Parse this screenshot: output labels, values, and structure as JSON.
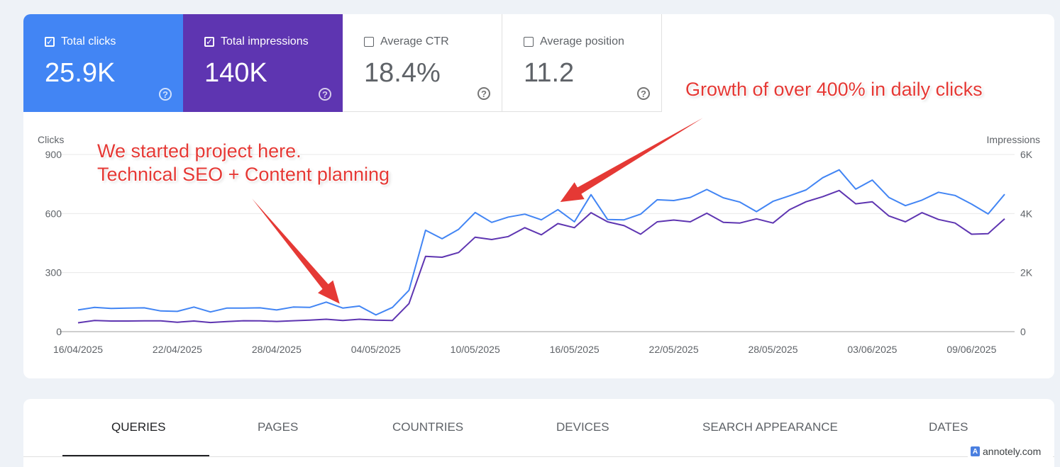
{
  "metrics": [
    {
      "label": "Total clicks",
      "value": "25.9K",
      "checked": true,
      "color": "#4285f4"
    },
    {
      "label": "Total impressions",
      "value": "140K",
      "checked": true,
      "color": "#5e35b1"
    },
    {
      "label": "Average CTR",
      "value": "18.4%",
      "checked": false
    },
    {
      "label": "Average position",
      "value": "11.2",
      "checked": false
    }
  ],
  "annotations": {
    "start_line1": "We started project here.",
    "start_line2": "Technical SEO + Content planning",
    "growth": "Growth of over 400% in daily clicks",
    "arrow_color": "#e53935"
  },
  "chart_data": {
    "type": "line",
    "left_axis_label": "Clicks",
    "right_axis_label": "Impressions",
    "left_ticks": [
      "900",
      "600",
      "300",
      "0"
    ],
    "right_ticks": [
      "6K",
      "4K",
      "2K",
      "0"
    ],
    "left_ylim": [
      0,
      900
    ],
    "right_ylim": [
      0,
      6000
    ],
    "x_tick_labels": [
      "16/04/2025",
      "22/04/2025",
      "28/04/2025",
      "04/05/2025",
      "10/05/2025",
      "16/05/2025",
      "22/05/2025",
      "28/05/2025",
      "03/06/2025",
      "09/06/2025"
    ],
    "x_start": "2025-04-16",
    "x_end": "2025-06-11",
    "grid": true,
    "series": [
      {
        "name": "Total clicks",
        "axis": "left",
        "color": "#4285f4",
        "values": [
          110,
          123,
          118,
          120,
          121,
          105,
          103,
          125,
          100,
          120,
          120,
          121,
          110,
          125,
          123,
          150,
          120,
          130,
          85,
          123,
          210,
          515,
          472,
          520,
          605,
          555,
          582,
          597,
          568,
          620,
          558,
          696,
          570,
          568,
          597,
          670,
          666,
          682,
          722,
          680,
          658,
          610,
          662,
          690,
          720,
          782,
          822,
          724,
          770,
          682,
          640,
          668,
          708,
          692,
          648,
          598,
          698
        ]
      },
      {
        "name": "Total impressions",
        "axis": "right",
        "color": "#5e35b1",
        "values": [
          300,
          380,
          360,
          360,
          365,
          365,
          320,
          360,
          310,
          340,
          370,
          365,
          345,
          370,
          390,
          420,
          380,
          420,
          390,
          380,
          950,
          2550,
          2520,
          2680,
          3200,
          3120,
          3220,
          3520,
          3280,
          3660,
          3520,
          4030,
          3720,
          3590,
          3300,
          3720,
          3780,
          3720,
          4010,
          3700,
          3680,
          3820,
          3680,
          4130,
          4400,
          4570,
          4780,
          4330,
          4400,
          3920,
          3720,
          4030,
          3800,
          3680,
          3300,
          3320,
          3820
        ]
      }
    ]
  },
  "tabs": {
    "items": [
      "QUERIES",
      "PAGES",
      "COUNTRIES",
      "DEVICES",
      "SEARCH APPEARANCE",
      "DATES"
    ],
    "active": "QUERIES"
  },
  "watermark": {
    "logo": "A",
    "text": "annotely.com"
  }
}
